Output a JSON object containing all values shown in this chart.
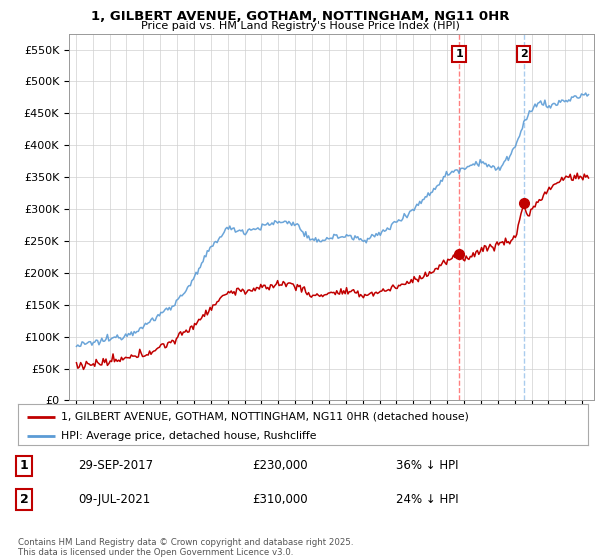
{
  "title": "1, GILBERT AVENUE, GOTHAM, NOTTINGHAM, NG11 0HR",
  "subtitle": "Price paid vs. HM Land Registry's House Price Index (HPI)",
  "legend_line1": "1, GILBERT AVENUE, GOTHAM, NOTTINGHAM, NG11 0HR (detached house)",
  "legend_line2": "HPI: Average price, detached house, Rushcliffe",
  "transaction1_date": "29-SEP-2017",
  "transaction1_price": 230000,
  "transaction1_text": "36% ↓ HPI",
  "transaction2_date": "09-JUL-2021",
  "transaction2_price": 310000,
  "transaction2_text": "24% ↓ HPI",
  "copyright_text": "Contains HM Land Registry data © Crown copyright and database right 2025.\nThis data is licensed under the Open Government Licence v3.0.",
  "hpi_color": "#5b9bd5",
  "price_color": "#c00000",
  "marker_color": "#c00000",
  "vline1_color": "#ff8080",
  "vline2_color": "#aaccee",
  "background_color": "#ffffff",
  "grid_color": "#d0d0d0",
  "ylim": [
    0,
    575000
  ],
  "yticks": [
    0,
    50000,
    100000,
    150000,
    200000,
    250000,
    300000,
    350000,
    400000,
    450000,
    500000,
    550000
  ],
  "hpi_anchors_t": [
    1995.0,
    1996.0,
    1997.0,
    1998.0,
    1999.0,
    2000.0,
    2001.0,
    2002.0,
    2003.0,
    2004.0,
    2005.0,
    2006.0,
    2007.0,
    2008.0,
    2009.0,
    2010.0,
    2011.0,
    2012.0,
    2013.0,
    2014.0,
    2015.0,
    2016.0,
    2017.0,
    2018.0,
    2019.0,
    2020.0,
    2021.0,
    2021.5,
    2022.0,
    2022.5,
    2023.0,
    2024.0,
    2025.3
  ],
  "hpi_anchors_v": [
    85000,
    90000,
    96000,
    103000,
    115000,
    135000,
    155000,
    190000,
    240000,
    270000,
    265000,
    272000,
    280000,
    278000,
    248000,
    255000,
    258000,
    252000,
    260000,
    280000,
    300000,
    325000,
    355000,
    365000,
    375000,
    360000,
    395000,
    430000,
    455000,
    470000,
    460000,
    470000,
    480000
  ],
  "price_anchors_t": [
    1995.0,
    1996.0,
    1997.0,
    1998.0,
    1999.0,
    2000.0,
    2001.0,
    2002.0,
    2003.0,
    2004.0,
    2005.0,
    2006.0,
    2007.0,
    2008.0,
    2009.0,
    2010.0,
    2011.0,
    2012.0,
    2013.0,
    2014.0,
    2015.0,
    2016.0,
    2017.0,
    2017.74,
    2018.0,
    2019.0,
    2020.0,
    2021.0,
    2021.54,
    2021.8,
    2022.0,
    2023.0,
    2024.0,
    2025.3
  ],
  "price_anchors_v": [
    55000,
    57000,
    60000,
    65000,
    72000,
    83000,
    97000,
    118000,
    145000,
    170000,
    172000,
    175000,
    183000,
    182000,
    163000,
    168000,
    170000,
    165000,
    170000,
    178000,
    188000,
    200000,
    218000,
    230000,
    222000,
    235000,
    245000,
    252000,
    310000,
    285000,
    300000,
    330000,
    350000,
    350000
  ]
}
